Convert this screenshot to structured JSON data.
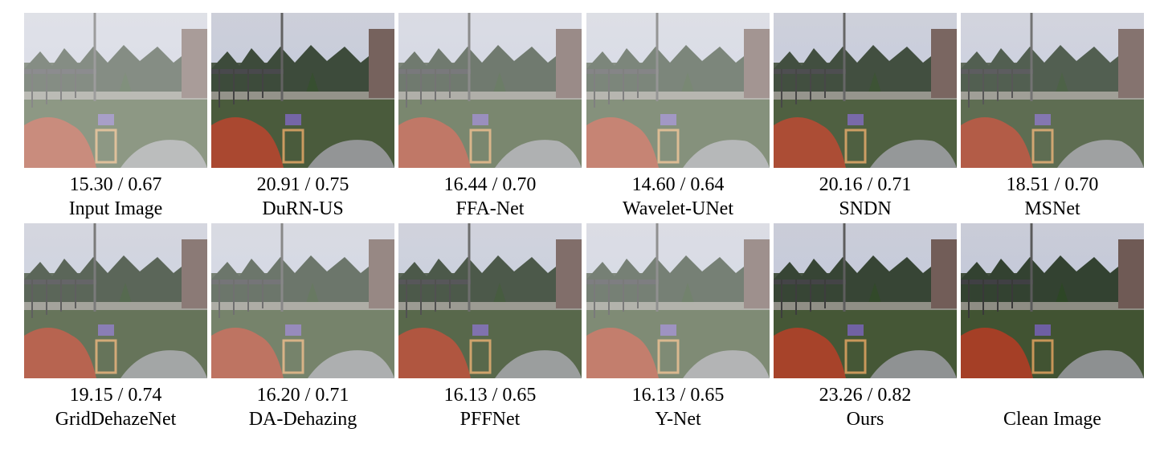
{
  "figure": {
    "panels": [
      {
        "score": "15.30 / 0.67",
        "label": "Input Image",
        "haze": 0.42,
        "tint": "#b9c4dd",
        "sky": "#c9cbd6"
      },
      {
        "score": "20.91 / 0.75",
        "label": "DuRN-US",
        "haze": 0.08,
        "tint": "#9fb7d6",
        "sky": "#a9bfd9"
      },
      {
        "score": "16.44 / 0.70",
        "label": "FFA-Net",
        "haze": 0.32,
        "tint": "#c6c4de",
        "sky": "#cfc7da"
      },
      {
        "score": "14.60 / 0.64",
        "label": "Wavelet-UNet",
        "haze": 0.38,
        "tint": "#8e8683",
        "sky": "#9b938f"
      },
      {
        "score": "20.16 / 0.71",
        "label": "SNDN",
        "haze": 0.1,
        "tint": "#9fb0cf",
        "sky": "#c9d2e3"
      },
      {
        "score": "18.51 / 0.70",
        "label": "MSNet",
        "haze": 0.18,
        "tint": "#c5c2db",
        "sky": "#d6d3e2"
      },
      {
        "score": "19.15 / 0.74",
        "label": "GridDehazeNet",
        "haze": 0.22,
        "tint": "#bdb3b0",
        "sky": "#c8bfbd"
      },
      {
        "score": "16.20 / 0.71",
        "label": "DA-Dehazing",
        "haze": 0.3,
        "tint": "#b7b3bb",
        "sky": "#c7bcbc"
      },
      {
        "score": "16.13 / 0.65",
        "label": "PFFNet",
        "haze": 0.15,
        "tint": "#a59a99",
        "sky": "#8e8789"
      },
      {
        "score": "16.13 / 0.65",
        "label": "Y-Net",
        "haze": 0.35,
        "tint": "#a9b8d9",
        "sky": "#b6c0da"
      },
      {
        "score": "23.26 / 0.82",
        "label": "Ours",
        "haze": 0.05,
        "tint": "#c5d0e4",
        "sky": "#d3dcea"
      },
      {
        "score": "",
        "label": "Clean Image",
        "haze": 0.03,
        "tint": "#d5d9e3",
        "sky": "#dcdfe7"
      }
    ]
  }
}
